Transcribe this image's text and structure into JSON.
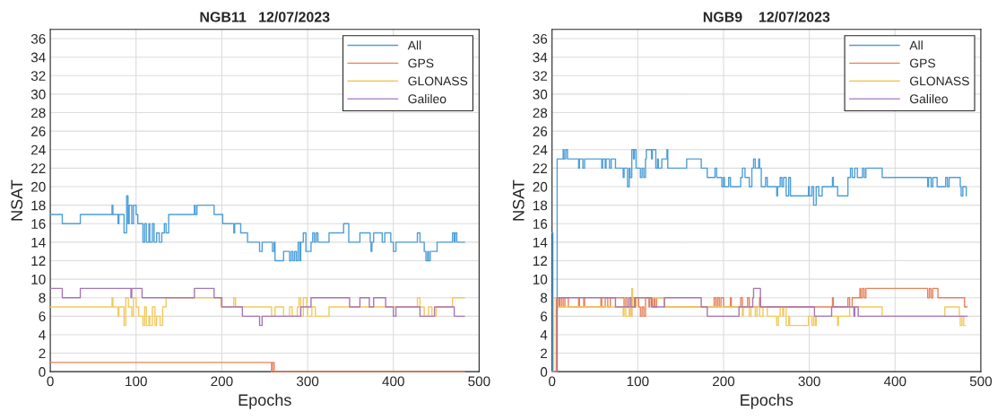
{
  "chart_data": [
    {
      "type": "step",
      "title": "NGB11   12/07/2023",
      "xlabel": "Epochs",
      "ylabel": "NSAT",
      "xlim": [
        0,
        500
      ],
      "xticks": [
        0,
        100,
        200,
        300,
        400,
        500
      ],
      "ylim": [
        0,
        37
      ],
      "yticks": [
        0,
        2,
        4,
        6,
        8,
        10,
        12,
        14,
        16,
        18,
        20,
        22,
        24,
        26,
        28,
        30,
        32,
        34,
        36
      ],
      "grid": true,
      "legend": "top right",
      "series": [
        {
          "name": "All",
          "color": "#4f9fd8",
          "x": [
            0,
            14,
            35,
            72,
            73,
            79,
            80,
            86,
            89,
            90.6,
            92,
            95,
            97,
            100,
            102,
            108,
            110,
            112,
            115,
            116,
            119,
            121,
            124,
            127,
            130,
            133,
            135,
            138,
            168,
            169,
            171,
            191,
            201,
            214,
            215,
            222,
            230,
            244,
            247,
            259,
            261,
            262,
            272,
            279,
            281,
            283,
            285,
            287,
            289,
            291,
            292,
            295,
            298,
            304,
            306,
            308,
            310,
            312,
            325,
            342,
            348,
            361,
            373,
            374,
            375,
            377,
            387,
            390,
            397,
            400,
            403,
            428,
            431,
            436,
            438,
            440,
            441,
            443,
            451,
            469,
            471,
            472,
            474,
            483
          ],
          "values": [
            17,
            16,
            17,
            18,
            17,
            16,
            17,
            15,
            19,
            16,
            18,
            16,
            18,
            17,
            16,
            14,
            16,
            14,
            16,
            14,
            16,
            14,
            15,
            14,
            15,
            16,
            15,
            17,
            18,
            17,
            18,
            17,
            16,
            15,
            16,
            15,
            14,
            13,
            14,
            13,
            14,
            12,
            13,
            12,
            13,
            12,
            13,
            12,
            14,
            12,
            14,
            15,
            13,
            14,
            15,
            14,
            15,
            14,
            15,
            16,
            14,
            15,
            14,
            13,
            14,
            15,
            14,
            15,
            14,
            13,
            14,
            15,
            14,
            13,
            12,
            13,
            12,
            13,
            14,
            15,
            14,
            15,
            14,
            14
          ]
        },
        {
          "name": "GPS",
          "color": "#e8825a",
          "x": [
            0,
            258,
            259,
            261,
            483
          ],
          "values": [
            1,
            0,
            1,
            0,
            0
          ]
        },
        {
          "name": "GLONASS",
          "color": "#f2c95e",
          "x": [
            0,
            72,
            73,
            79,
            80,
            86,
            88,
            91,
            95,
            97,
            100,
            103,
            108,
            110,
            112,
            115,
            116,
            119,
            122,
            124,
            128,
            131,
            135,
            199,
            214,
            216,
            258,
            262,
            272,
            279,
            282,
            288,
            290,
            292,
            295,
            299,
            300,
            305,
            309,
            325,
            428,
            431,
            436,
            441,
            445,
            450,
            469,
            483
          ],
          "values": [
            7,
            8,
            7,
            6,
            7,
            5,
            8,
            7,
            6,
            8,
            7,
            6,
            5,
            7,
            5,
            6,
            5,
            7,
            5,
            6,
            5,
            7,
            8,
            7,
            8,
            7,
            6,
            7,
            6,
            7,
            6,
            7,
            8,
            6,
            8,
            7,
            6,
            7,
            6,
            7,
            8,
            7,
            6,
            7,
            6,
            7,
            8,
            8
          ]
        },
        {
          "name": "Galileo",
          "color": "#a677b5",
          "x": [
            0,
            14,
            35,
            94,
            95,
            107,
            168,
            191,
            200,
            224,
            244,
            247,
            292,
            304,
            349,
            361,
            372,
            377,
            391,
            400,
            403,
            431,
            448,
            471,
            483
          ],
          "values": [
            9,
            8,
            9,
            8,
            9,
            8,
            9,
            8,
            7,
            6,
            5,
            6,
            7,
            8,
            7,
            8,
            7,
            8,
            7,
            6,
            7,
            6,
            7,
            6,
            6
          ]
        }
      ]
    },
    {
      "type": "step",
      "title": "NGB9    12/07/2023",
      "xlabel": "Epochs",
      "ylabel": "NSAT",
      "xlim": [
        0,
        500
      ],
      "xticks": [
        0,
        100,
        200,
        300,
        400,
        500
      ],
      "ylim": [
        0,
        37
      ],
      "yticks": [
        0,
        2,
        4,
        6,
        8,
        10,
        12,
        14,
        16,
        18,
        20,
        22,
        24,
        26,
        28,
        30,
        32,
        34,
        36
      ],
      "grid": true,
      "legend": "top right",
      "series": [
        {
          "name": "All",
          "color": "#4f9fd8",
          "x": [
            0,
            1,
            6,
            13,
            14,
            16,
            18,
            31,
            32,
            36,
            38,
            58,
            59,
            62,
            63,
            67,
            69,
            74,
            83,
            84,
            88,
            90,
            91,
            93,
            95,
            96,
            98,
            103,
            105,
            107,
            109,
            110,
            116,
            117,
            121,
            123,
            124,
            128,
            134,
            135,
            157,
            174,
            181,
            190,
            192,
            198,
            200,
            201,
            206,
            208,
            220,
            222,
            225,
            230,
            233,
            235,
            237,
            241,
            242,
            244,
            249,
            251,
            262,
            263,
            266,
            268,
            270,
            273,
            276,
            278,
            299,
            300,
            303,
            305,
            308,
            311,
            315,
            327,
            328,
            333,
            345,
            348,
            350,
            353,
            356,
            362,
            364,
            366,
            385,
            438,
            439,
            442,
            444,
            449,
            459,
            461,
            463,
            476,
            477,
            479,
            483
          ],
          "values": [
            15,
            0,
            23,
            24,
            23,
            24,
            23,
            22,
            23,
            22,
            23,
            22,
            23,
            22,
            23,
            22,
            23,
            22,
            21,
            22,
            20,
            22,
            21,
            24,
            23,
            24,
            22,
            21,
            22,
            21,
            23,
            24,
            23,
            24,
            22,
            23,
            22,
            23,
            24,
            22,
            23,
            22,
            21,
            22,
            21,
            20,
            21,
            20,
            21,
            20,
            21,
            22,
            21,
            20,
            22,
            23,
            22,
            23,
            22,
            20,
            21,
            20,
            19,
            20,
            21,
            20,
            21,
            19,
            21,
            19,
            20,
            19,
            20,
            18,
            20,
            19,
            20,
            21,
            20,
            19,
            21,
            22,
            21,
            22,
            21,
            22,
            21,
            22,
            21,
            20,
            21,
            20,
            21,
            20,
            21,
            20,
            21,
            20,
            19,
            20,
            19
          ]
        },
        {
          "name": "GPS",
          "color": "#e8825a",
          "x": [
            0,
            5,
            6,
            8,
            9,
            11,
            13,
            15,
            19,
            31,
            32,
            37,
            38,
            57,
            58,
            62,
            65,
            68,
            84,
            86,
            88,
            91,
            93,
            96,
            98,
            101,
            103,
            105,
            107,
            109,
            113,
            114,
            117,
            119,
            120,
            122,
            131,
            189,
            191,
            193,
            195,
            197,
            200,
            208,
            209,
            220,
            222,
            228,
            230,
            242,
            243,
            327,
            328,
            345,
            347,
            350,
            359,
            360,
            362,
            364,
            366,
            438,
            440,
            442,
            444,
            450,
            481,
            484
          ],
          "values": [
            0,
            8,
            7,
            8,
            7,
            8,
            7,
            8,
            7,
            8,
            7,
            8,
            7,
            8,
            7,
            8,
            7,
            8,
            7,
            8,
            7,
            6,
            8,
            7,
            8,
            7,
            6,
            7,
            6,
            8,
            7,
            8,
            7,
            8,
            7,
            8,
            7,
            8,
            7,
            8,
            7,
            8,
            7,
            8,
            7,
            8,
            7,
            8,
            7,
            8,
            7,
            8,
            7,
            8,
            7,
            8,
            9,
            8,
            9,
            8,
            9,
            8,
            9,
            8,
            9,
            8,
            7,
            7
          ]
        },
        {
          "name": "GLONASS",
          "color": "#f2c95e",
          "x": [
            0,
            2,
            6,
            83,
            84,
            86,
            90,
            91,
            93,
            94,
            98,
            131,
            222,
            223,
            230,
            232,
            237,
            239,
            242,
            246,
            251,
            262,
            264,
            266,
            269,
            270,
            273,
            276,
            277,
            299,
            303,
            305,
            307,
            308,
            333,
            334,
            347,
            385,
            458,
            475,
            476,
            478,
            480,
            482
          ],
          "values": [
            0,
            8,
            7,
            6,
            7,
            6,
            7,
            6,
            9,
            7,
            8,
            7,
            6,
            7,
            6,
            7,
            6,
            7,
            6,
            7,
            6,
            5,
            6,
            7,
            6,
            7,
            5,
            6,
            5,
            6,
            5,
            6,
            5,
            6,
            5,
            6,
            7,
            6,
            7,
            6,
            5,
            6,
            5,
            5
          ]
        },
        {
          "name": "Galileo",
          "color": "#a677b5",
          "x": [
            0,
            6,
            74,
            90,
            92,
            97,
            116,
            131,
            174,
            181,
            218,
            234,
            235,
            243,
            306,
            326,
            352,
            353,
            357,
            484
          ],
          "values": [
            0,
            8,
            7,
            8,
            7,
            8,
            7,
            8,
            7,
            6,
            7,
            8,
            9,
            7,
            6,
            7,
            6,
            7,
            6,
            6
          ]
        }
      ]
    }
  ]
}
